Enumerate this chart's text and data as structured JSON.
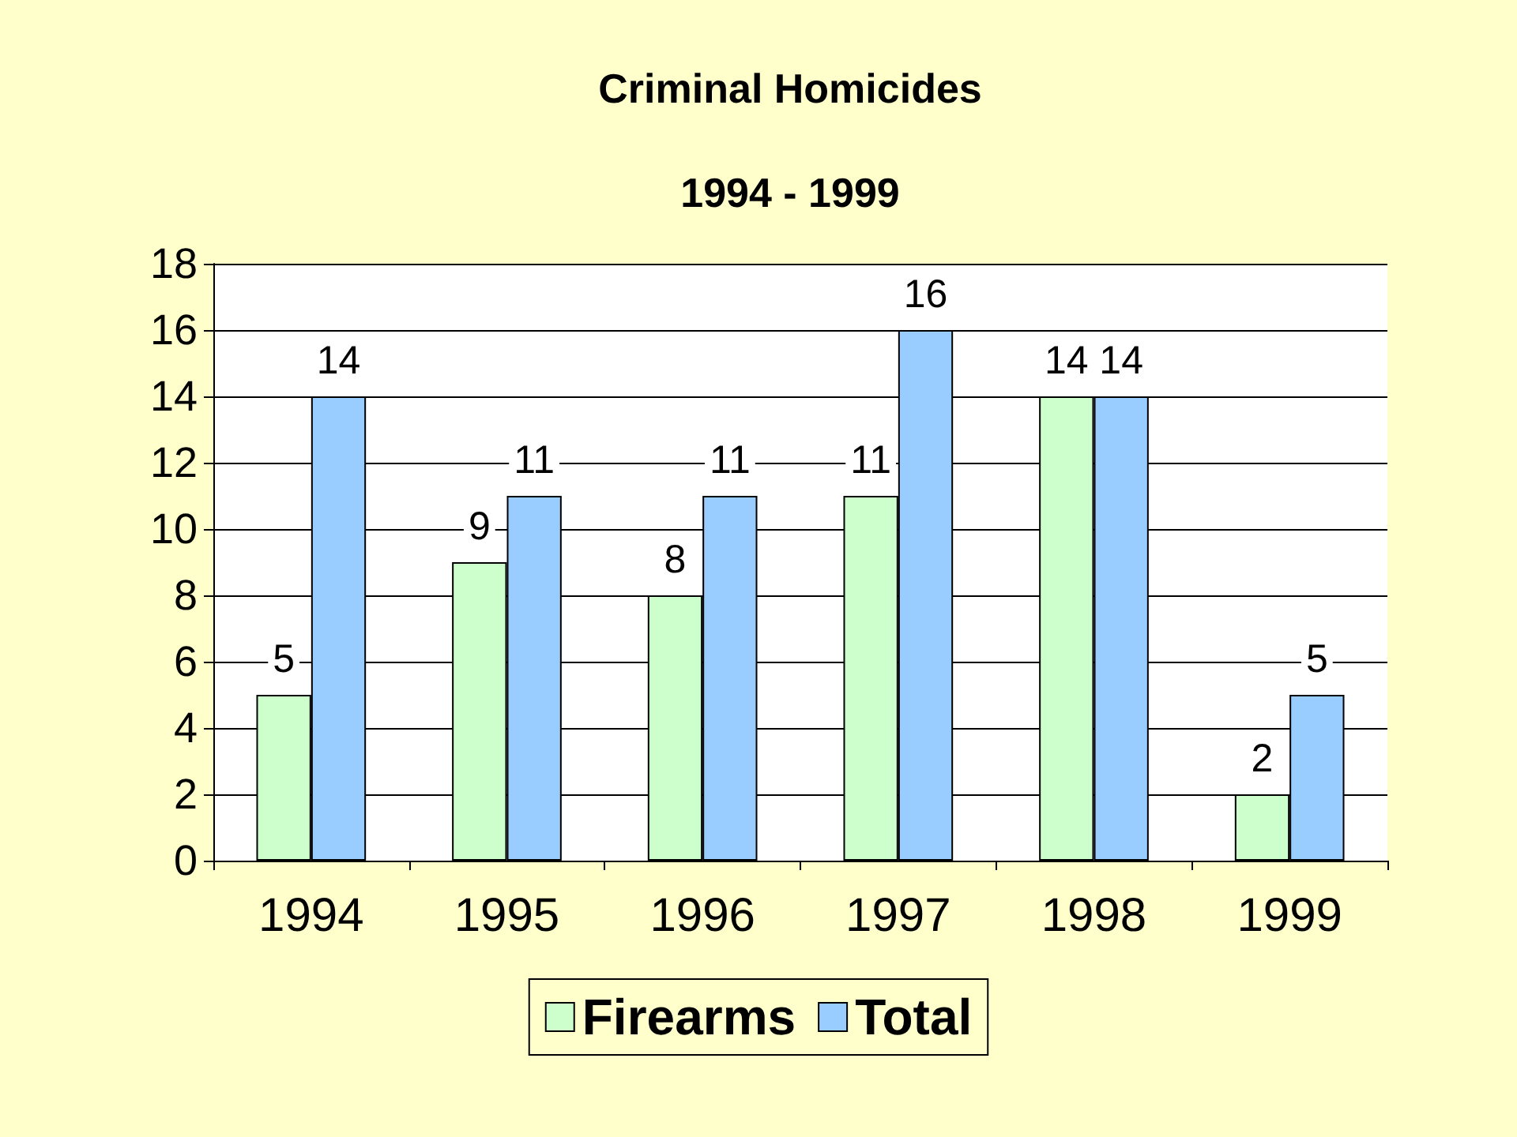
{
  "chart_data": {
    "type": "bar",
    "title": "Criminal Homicides",
    "subtitle": "1994 - 1999",
    "categories": [
      "1994",
      "1995",
      "1996",
      "1997",
      "1998",
      "1999"
    ],
    "series": [
      {
        "name": "Firearms",
        "color": "#ccffcc",
        "values": [
          5,
          9,
          8,
          11,
          14,
          2
        ]
      },
      {
        "name": "Total",
        "color": "#99ccff",
        "values": [
          14,
          11,
          11,
          16,
          14,
          5
        ]
      }
    ],
    "ylim": [
      0,
      18
    ],
    "yticks": [
      0,
      2,
      4,
      6,
      8,
      10,
      12,
      14,
      16,
      18
    ],
    "grid": "y",
    "legend": "bottom",
    "data_labels": true
  }
}
